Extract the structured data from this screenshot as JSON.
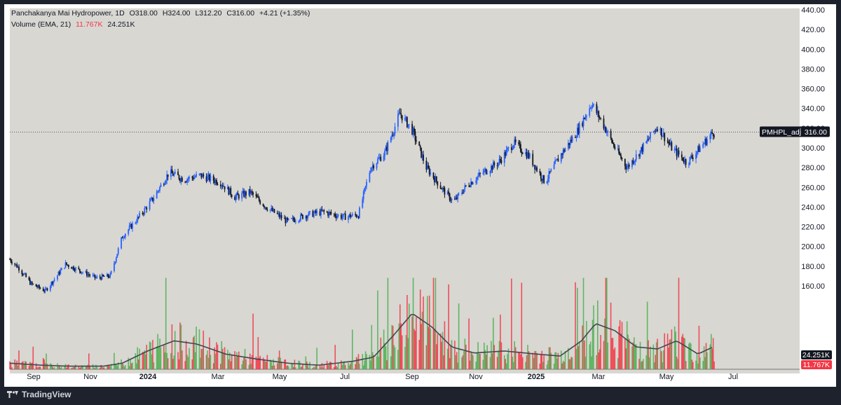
{
  "header": {
    "symbol_title": "Panchakanya Mai Hydropower, 1D",
    "open_label": "O",
    "open": "318.00",
    "high_label": "H",
    "high": "324.00",
    "low_label": "L",
    "low": "312.20",
    "close_label": "C",
    "close": "316.00",
    "change": "+4.21 (+1.35%)",
    "volume_title": "Volume (EMA, 21)",
    "volume_value": "11.767K",
    "volume_ema": "24.251K"
  },
  "price_tag": {
    "symbol": "PMHPL_adj",
    "value": "316.00"
  },
  "volume_tags": {
    "ema": "24.251K",
    "volume": "11.767K"
  },
  "branding": {
    "name": "TradingView"
  },
  "colors": {
    "background": "#d8d7d2",
    "up": "#2962ff",
    "down": "#131722",
    "vol_up": "#4caf50",
    "vol_down": "#f23645",
    "ema_line": "#434651"
  },
  "chart_data": {
    "type": "candlestick",
    "title": "Panchakanya Mai Hydropower, 1D",
    "y_axis": {
      "ticks": [
        160,
        180,
        200,
        220,
        240,
        260,
        280,
        300,
        320,
        340,
        360,
        380,
        400,
        420,
        440
      ],
      "ylim": [
        150,
        440
      ]
    },
    "x_axis": {
      "ticks": [
        "Sep",
        "Nov",
        "2024",
        "Mar",
        "May",
        "Jul",
        "Sep",
        "Nov",
        "2025",
        "Mar",
        "May",
        "Jul"
      ]
    },
    "last_price": 316.0,
    "price_path": [
      [
        "2023-08-01",
        187
      ],
      [
        "2023-08-10",
        178
      ],
      [
        "2023-08-22",
        162
      ],
      [
        "2023-09-05",
        155
      ],
      [
        "2023-09-15",
        168
      ],
      [
        "2023-09-25",
        182
      ],
      [
        "2023-10-10",
        175
      ],
      [
        "2023-10-25",
        168
      ],
      [
        "2023-11-08",
        170
      ],
      [
        "2023-11-20",
        210
      ],
      [
        "2023-12-05",
        228
      ],
      [
        "2023-12-20",
        248
      ],
      [
        "2024-01-05",
        275
      ],
      [
        "2024-01-20",
        268
      ],
      [
        "2024-02-05",
        272
      ],
      [
        "2024-02-25",
        265
      ],
      [
        "2024-03-10",
        250
      ],
      [
        "2024-03-25",
        255
      ],
      [
        "2024-04-10",
        240
      ],
      [
        "2024-05-01",
        225
      ],
      [
        "2024-05-20",
        232
      ],
      [
        "2024-06-05",
        235
      ],
      [
        "2024-06-25",
        230
      ],
      [
        "2024-07-10",
        232
      ],
      [
        "2024-07-22",
        280
      ],
      [
        "2024-08-05",
        295
      ],
      [
        "2024-08-20",
        335
      ],
      [
        "2024-09-01",
        318
      ],
      [
        "2024-09-15",
        280
      ],
      [
        "2024-10-01",
        258
      ],
      [
        "2024-10-12",
        245
      ],
      [
        "2024-10-25",
        262
      ],
      [
        "2024-11-10",
        275
      ],
      [
        "2024-11-25",
        285
      ],
      [
        "2024-12-10",
        305
      ],
      [
        "2024-12-25",
        292
      ],
      [
        "2025-01-10",
        265
      ],
      [
        "2025-01-25",
        292
      ],
      [
        "2025-02-10",
        315
      ],
      [
        "2025-02-25",
        345
      ],
      [
        "2025-03-08",
        325
      ],
      [
        "2025-03-20",
        300
      ],
      [
        "2025-04-01",
        280
      ],
      [
        "2025-04-15",
        298
      ],
      [
        "2025-05-01",
        322
      ],
      [
        "2025-05-15",
        300
      ],
      [
        "2025-05-30",
        285
      ],
      [
        "2025-06-12",
        300
      ],
      [
        "2025-06-25",
        316
      ]
    ],
    "volume_ema_path": [
      [
        "2023-08-01",
        6
      ],
      [
        "2023-09-01",
        4
      ],
      [
        "2023-10-01",
        3
      ],
      [
        "2023-11-01",
        3
      ],
      [
        "2023-11-20",
        6
      ],
      [
        "2023-12-15",
        18
      ],
      [
        "2024-01-10",
        28
      ],
      [
        "2024-02-01",
        25
      ],
      [
        "2024-03-01",
        15
      ],
      [
        "2024-04-01",
        10
      ],
      [
        "2024-05-01",
        6
      ],
      [
        "2024-06-01",
        4
      ],
      [
        "2024-07-05",
        8
      ],
      [
        "2024-07-25",
        12
      ],
      [
        "2024-08-15",
        35
      ],
      [
        "2024-09-01",
        55
      ],
      [
        "2024-09-20",
        42
      ],
      [
        "2024-10-10",
        22
      ],
      [
        "2024-11-01",
        16
      ],
      [
        "2024-12-01",
        18
      ],
      [
        "2025-01-01",
        15
      ],
      [
        "2025-01-25",
        13
      ],
      [
        "2025-02-15",
        28
      ],
      [
        "2025-03-01",
        45
      ],
      [
        "2025-03-20",
        38
      ],
      [
        "2025-04-10",
        22
      ],
      [
        "2025-05-01",
        20
      ],
      [
        "2025-05-20",
        28
      ],
      [
        "2025-06-10",
        15
      ],
      [
        "2025-06-25",
        22
      ]
    ]
  }
}
